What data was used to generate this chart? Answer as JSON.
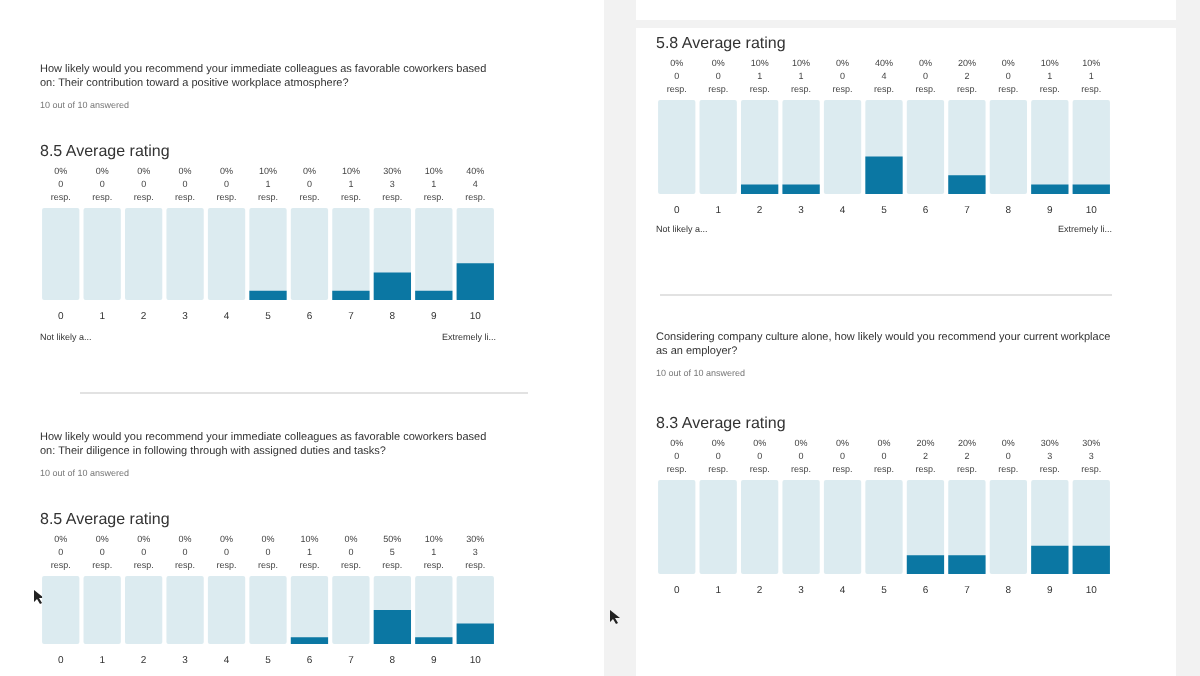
{
  "chart_data": [
    {
      "type": "bar",
      "subtitle": "How likely would you recommend your immediate colleagues as favorable coworkers based on: Their contribution toward a positive workplace atmosphere?",
      "title": "8.5 Average rating",
      "annotations": [
        "10 out of 10 answered",
        "Not likely a...",
        "Extremely li..."
      ],
      "categories": [
        "0",
        "1",
        "2",
        "3",
        "4",
        "5",
        "6",
        "7",
        "8",
        "9",
        "10"
      ],
      "values": [
        0,
        0,
        0,
        0,
        0,
        10,
        0,
        10,
        30,
        10,
        40
      ],
      "value_labels": [
        "0%\n0\nresp.",
        "0%\n0\nresp.",
        "0%\n0\nresp.",
        "0%\n0\nresp.",
        "0%\n0\nresp.",
        "10%\n1\nresp.",
        "0%\n0\nresp.",
        "10%\n1\nresp.",
        "30%\n3\nresp.",
        "10%\n1\nresp.",
        "40%\n4\nresp."
      ],
      "color": "#0b77a3",
      "ylim": [
        0,
        100
      ],
      "tick_labels": "x"
    },
    {
      "type": "bar",
      "title": "5.8 Average rating",
      "annotations": [
        "Not likely a...",
        "Extremely li..."
      ],
      "categories": [
        "0",
        "1",
        "2",
        "3",
        "4",
        "5",
        "6",
        "7",
        "8",
        "9",
        "10"
      ],
      "values": [
        0,
        0,
        10,
        10,
        0,
        40,
        0,
        20,
        0,
        10,
        10
      ],
      "value_labels": [
        "0%\n0\nresp.",
        "0%\n0\nresp.",
        "10%\n1\nresp.",
        "10%\n1\nresp.",
        "0%\n0\nresp.",
        "40%\n4\nresp.",
        "0%\n0\nresp.",
        "20%\n2\nresp.",
        "0%\n0\nresp.",
        "10%\n1\nresp.",
        "10%\n1\nresp."
      ],
      "color": "#0b77a3",
      "ylim": [
        0,
        100
      ],
      "tick_labels": "x"
    },
    {
      "type": "bar",
      "subtitle": "Considering company culture alone, how likely would you recommend your current workplace as an employer?",
      "title": "8.3 Average rating",
      "annotations": [
        "10 out of 10 answered"
      ],
      "categories": [
        "0",
        "1",
        "2",
        "3",
        "4",
        "5",
        "6",
        "7",
        "8",
        "9",
        "10"
      ],
      "values": [
        0,
        0,
        0,
        0,
        0,
        0,
        20,
        20,
        0,
        30,
        30
      ],
      "value_labels": [
        "0%\n0\nresp.",
        "0%\n0\nresp.",
        "0%\n0\nresp.",
        "0%\n0\nresp.",
        "0%\n0\nresp.",
        "0%\n0\nresp.",
        "20%\n2\nresp.",
        "20%\n2\nresp.",
        "0%\n0\nresp.",
        "30%\n3\nresp.",
        "30%\n3\nresp."
      ],
      "color": "#0b77a3",
      "ylim": [
        0,
        100
      ],
      "tick_labels": "x"
    },
    {
      "type": "bar",
      "subtitle": "How likely would you recommend your immediate colleagues as favorable coworkers based on: Their diligence in following through with assigned duties and tasks?",
      "title": "8.5 Average rating",
      "annotations": [
        "10 out of 10 answered"
      ],
      "categories": [
        "0",
        "1",
        "2",
        "3",
        "4",
        "5",
        "6",
        "7",
        "8",
        "9",
        "10"
      ],
      "values": [
        0,
        0,
        0,
        0,
        0,
        0,
        10,
        0,
        50,
        10,
        30
      ],
      "value_labels": [
        "0%\n0\nresp.",
        "0%\n0\nresp.",
        "0%\n0\nresp.",
        "0%\n0\nresp.",
        "0%\n0\nresp.",
        "0%\n0\nresp.",
        "10%\n1\nresp.",
        "0%\n0\nresp.",
        "50%\n5\nresp.",
        "10%\n1\nresp.",
        "30%\n3\nresp."
      ],
      "color": "#0b77a3",
      "ylim": [
        0,
        100
      ],
      "tick_labels": "x"
    }
  ]
}
